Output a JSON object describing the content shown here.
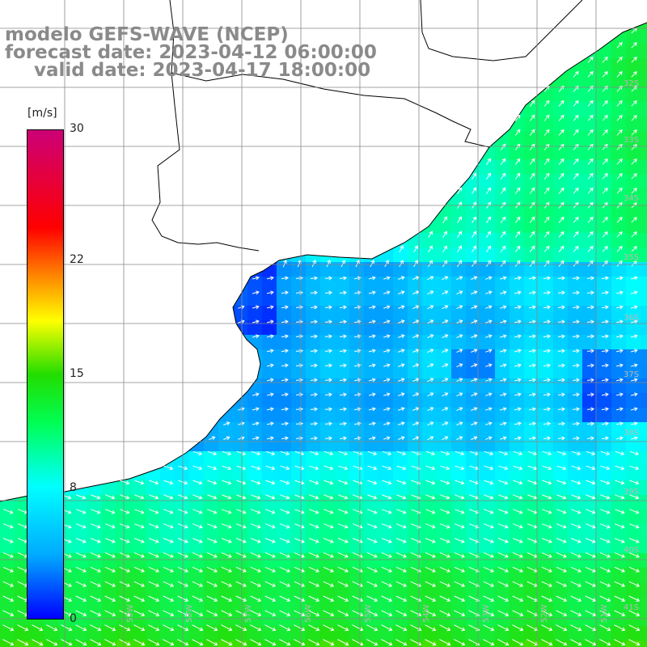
{
  "title": {
    "line1": "modelo GEFS-WAVE (NCEP)",
    "line2": "forecast date: 2023-04-12 06:00:00",
    "line3": "valid date: 2023-04-17 18:00:00"
  },
  "colorbar": {
    "unit": "[m/s]",
    "ticks": [
      {
        "value": 30,
        "label": "30"
      },
      {
        "value": 22,
        "label": "22"
      },
      {
        "value": 15,
        "label": "15"
      },
      {
        "value": 8,
        "label": "8"
      },
      {
        "value": 0,
        "label": "0"
      }
    ]
  },
  "lat_labels": [
    "32S",
    "33S",
    "34S",
    "35S",
    "36S",
    "37S",
    "38S",
    "39S",
    "40S",
    "41S"
  ],
  "lon_labels": [
    "59W",
    "58W",
    "57W",
    "56W",
    "55W",
    "54W",
    "53W",
    "52W",
    "51W"
  ],
  "colors": {
    "land": "#ffffff",
    "coast": "#000000",
    "grid": "#888888",
    "arrow": "#ffffff",
    "title": "#8a8a8a"
  }
}
